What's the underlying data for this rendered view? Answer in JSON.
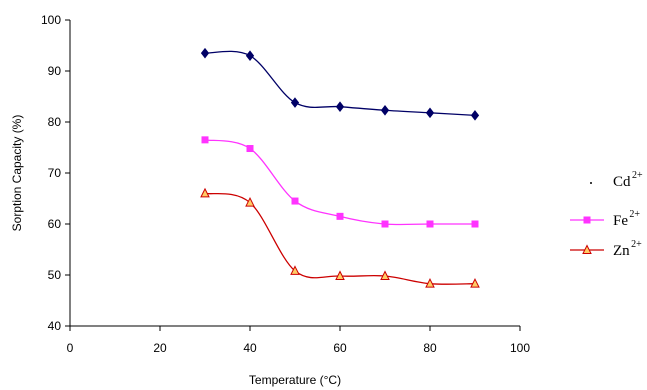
{
  "chart_data": {
    "type": "line",
    "title": "",
    "xlabel": "Temperature (°C)",
    "ylabel": "Sorption Capacity (%)",
    "xlim": [
      0,
      100
    ],
    "ylim": [
      40,
      100
    ],
    "xticks": [
      0,
      20,
      40,
      60,
      80,
      100
    ],
    "yticks": [
      40,
      50,
      60,
      70,
      80,
      90,
      100
    ],
    "grid": false,
    "legend_position": "right",
    "x": [
      30,
      40,
      50,
      60,
      70,
      80,
      90
    ],
    "series": [
      {
        "name": "Cd",
        "charge": "2+",
        "marker": "diamond",
        "color": "#000066",
        "values": [
          93.5,
          93.0,
          83.8,
          83.0,
          82.3,
          81.8,
          81.3
        ]
      },
      {
        "name": "Fe",
        "charge": "2+",
        "marker": "square",
        "color": "#ff33ff",
        "values": [
          76.5,
          74.8,
          64.5,
          61.5,
          60.0,
          60.0,
          60.0
        ]
      },
      {
        "name": "Zn",
        "charge": "2+",
        "marker": "triangle",
        "color": "#cc0000",
        "marker_fill": "#ffcc66",
        "values": [
          66.0,
          64.2,
          50.8,
          49.8,
          49.8,
          48.3,
          48.3
        ]
      }
    ]
  }
}
